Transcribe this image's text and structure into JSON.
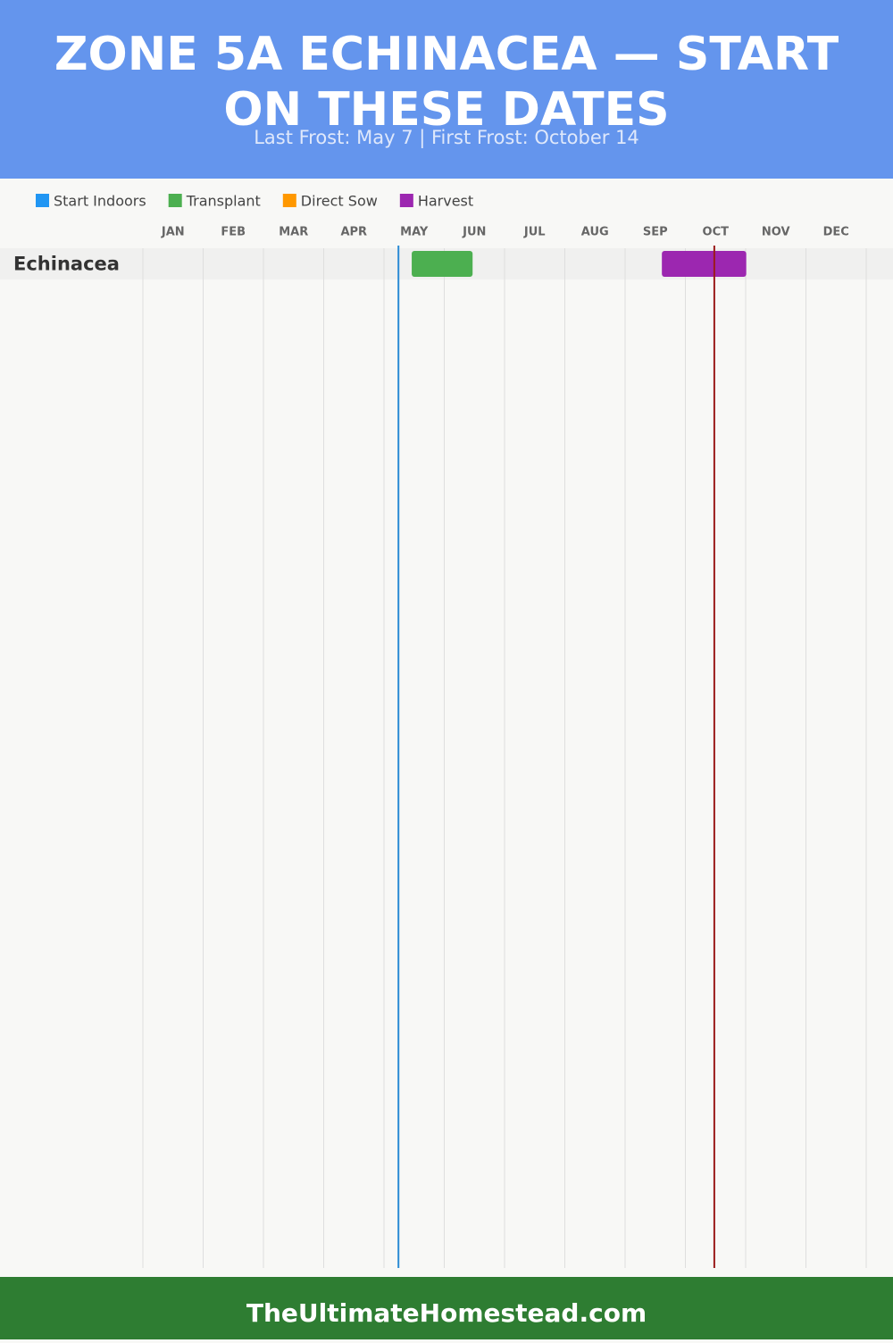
{
  "header": {
    "title": "ZONE 5A ECHINACEA — START ON THESE DATES",
    "subtitle": "Last Frost: May 7 | First Frost: October 14"
  },
  "chart_data": {
    "type": "gantt",
    "series": [
      {
        "name": "Start Indoors",
        "color": "#2196f3"
      },
      {
        "name": "Transplant",
        "color": "#4caf50"
      },
      {
        "name": "Direct Sow",
        "color": "#ff9800"
      },
      {
        "name": "Harvest",
        "color": "#9c27b0"
      }
    ],
    "categories": [
      "JAN",
      "FEB",
      "MAR",
      "APR",
      "MAY",
      "JUN",
      "JUL",
      "AUG",
      "SEP",
      "OCT",
      "NOV",
      "DEC"
    ],
    "xlim": [
      0,
      12
    ],
    "xticks": [
      0,
      1,
      2,
      3,
      4,
      5,
      6,
      7,
      8,
      9,
      10,
      11,
      12
    ],
    "grid": true,
    "rows": [
      {
        "name": "Echinacea",
        "bars": [
          {
            "series": 1,
            "start": 4.46,
            "end": 5.47
          },
          {
            "series": 3,
            "start": 8.61,
            "end": 10.01
          }
        ]
      }
    ],
    "markers": [
      {
        "value": 4.24,
        "color": "#2a8ad4"
      },
      {
        "value": 9.48,
        "color": "#9b1b1b"
      }
    ]
  },
  "footer": {
    "text": "TheUltimateHomestead.com"
  }
}
